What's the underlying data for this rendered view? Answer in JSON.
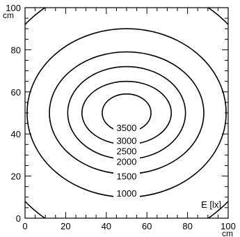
{
  "chart_data": {
    "type": "contour",
    "quantity_label": "E [lx]",
    "x_axis": {
      "unit": "cm",
      "range": [
        0,
        100
      ],
      "ticks": [
        0,
        20,
        40,
        60,
        80,
        100
      ],
      "tick_labels": [
        "0",
        "20",
        "40",
        "60",
        "80",
        "100"
      ]
    },
    "y_axis": {
      "unit": "cm",
      "range": [
        0,
        100
      ],
      "ticks": [
        0,
        20,
        40,
        60,
        80,
        100
      ],
      "tick_labels": [
        "0",
        "20",
        "40",
        "60",
        "80",
        "100"
      ]
    },
    "center": [
      50,
      50
    ],
    "levels": [
      {
        "value": 1000,
        "label": "1000",
        "rx": 68,
        "ry": 62,
        "label_y": 12
      },
      {
        "value": 1500,
        "label": "1500",
        "rx": 49,
        "ry": 40,
        "label_y": 20
      },
      {
        "value": 2000,
        "label": "2000",
        "rx": 38,
        "ry": 29,
        "label_y": 27
      },
      {
        "value": 2500,
        "label": "2500",
        "rx": 29,
        "ry": 22,
        "label_y": 32
      },
      {
        "value": 3000,
        "label": "3000",
        "rx": 22,
        "ry": 15,
        "label_y": 37
      },
      {
        "value": 3500,
        "label": "3500",
        "rx": 12,
        "ry": 9,
        "label_y": 43
      }
    ]
  }
}
